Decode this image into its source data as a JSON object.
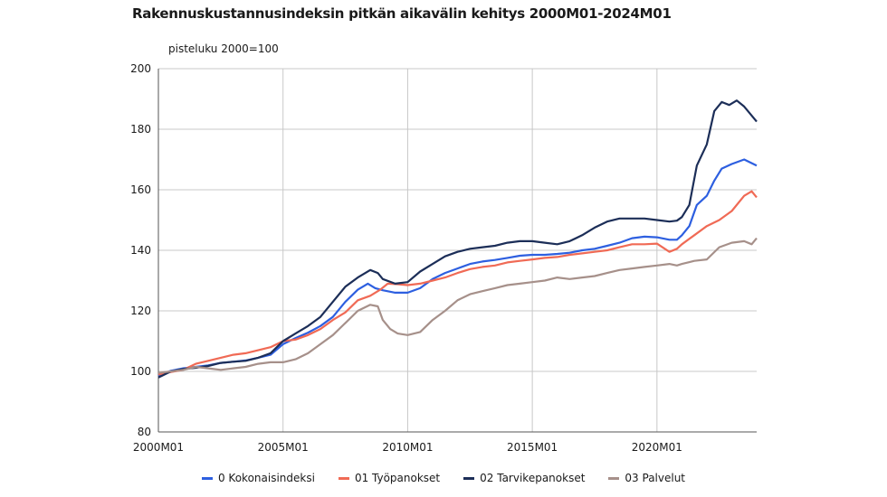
{
  "chart_data": {
    "type": "line",
    "title": "Rakennuskustannusindeksin pitkän aikavälin kehitys 2000M01-2024M01",
    "ylabel": "pisteluku 2000=100",
    "xlabel": "",
    "xlim": [
      2000.0,
      2024.0
    ],
    "ylim": [
      80,
      200
    ],
    "yticks": [
      80,
      100,
      120,
      140,
      160,
      180,
      200
    ],
    "xticks": [
      2000,
      2005,
      2010,
      2015,
      2020
    ],
    "xtick_labels": [
      "2000M01",
      "2005M01",
      "2010M01",
      "2015M01",
      "2020M01"
    ],
    "grid": true,
    "legend_position": "bottom",
    "series": [
      {
        "name": "0 Kokonaisindeksi",
        "color": "#2d5fe0",
        "points": [
          [
            2000.0,
            98.5
          ],
          [
            2000.5,
            100.2
          ],
          [
            2001.0,
            101.0
          ],
          [
            2001.5,
            101.5
          ],
          [
            2002.0,
            102.0
          ],
          [
            2002.5,
            102.8
          ],
          [
            2003.0,
            103.2
          ],
          [
            2003.5,
            103.6
          ],
          [
            2004.0,
            104.5
          ],
          [
            2004.5,
            105.5
          ],
          [
            2005.0,
            109.0
          ],
          [
            2005.5,
            111.0
          ],
          [
            2006.0,
            112.8
          ],
          [
            2006.5,
            115.0
          ],
          [
            2007.0,
            118.0
          ],
          [
            2007.5,
            123.0
          ],
          [
            2008.0,
            127.0
          ],
          [
            2008.4,
            129.0
          ],
          [
            2008.7,
            127.5
          ],
          [
            2009.0,
            126.8
          ],
          [
            2009.5,
            126.0
          ],
          [
            2010.0,
            126.0
          ],
          [
            2010.5,
            127.5
          ],
          [
            2011.0,
            130.5
          ],
          [
            2011.5,
            132.5
          ],
          [
            2012.0,
            134.0
          ],
          [
            2012.5,
            135.5
          ],
          [
            2013.0,
            136.3
          ],
          [
            2013.5,
            136.8
          ],
          [
            2014.0,
            137.5
          ],
          [
            2014.5,
            138.2
          ],
          [
            2015.0,
            138.5
          ],
          [
            2015.5,
            138.5
          ],
          [
            2016.0,
            138.8
          ],
          [
            2016.5,
            139.2
          ],
          [
            2017.0,
            140.0
          ],
          [
            2017.5,
            140.5
          ],
          [
            2018.0,
            141.5
          ],
          [
            2018.5,
            142.5
          ],
          [
            2019.0,
            144.0
          ],
          [
            2019.5,
            144.5
          ],
          [
            2020.0,
            144.3
          ],
          [
            2020.5,
            143.5
          ],
          [
            2020.8,
            143.5
          ],
          [
            2021.0,
            145.0
          ],
          [
            2021.3,
            148.0
          ],
          [
            2021.6,
            155.0
          ],
          [
            2022.0,
            158.0
          ],
          [
            2022.3,
            163.0
          ],
          [
            2022.6,
            167.0
          ],
          [
            2023.0,
            168.5
          ],
          [
            2023.5,
            170.0
          ],
          [
            2024.0,
            168.0
          ]
        ]
      },
      {
        "name": "01 Työpanokset",
        "color": "#f06a55",
        "points": [
          [
            2000.0,
            99.0
          ],
          [
            2000.5,
            99.8
          ],
          [
            2001.0,
            100.5
          ],
          [
            2001.5,
            102.5
          ],
          [
            2002.0,
            103.5
          ],
          [
            2002.5,
            104.5
          ],
          [
            2003.0,
            105.5
          ],
          [
            2003.5,
            106.0
          ],
          [
            2004.0,
            107.0
          ],
          [
            2004.5,
            108.0
          ],
          [
            2005.0,
            110.0
          ],
          [
            2005.5,
            110.5
          ],
          [
            2006.0,
            112.0
          ],
          [
            2006.5,
            114.0
          ],
          [
            2007.0,
            117.0
          ],
          [
            2007.5,
            119.5
          ],
          [
            2008.0,
            123.5
          ],
          [
            2008.5,
            125.0
          ],
          [
            2008.9,
            127.0
          ],
          [
            2009.2,
            129.0
          ],
          [
            2009.6,
            128.8
          ],
          [
            2010.0,
            128.5
          ],
          [
            2010.5,
            129.0
          ],
          [
            2011.0,
            130.0
          ],
          [
            2011.5,
            131.0
          ],
          [
            2012.0,
            132.5
          ],
          [
            2012.5,
            133.8
          ],
          [
            2013.0,
            134.5
          ],
          [
            2013.5,
            135.0
          ],
          [
            2014.0,
            136.0
          ],
          [
            2014.5,
            136.5
          ],
          [
            2015.0,
            137.0
          ],
          [
            2015.5,
            137.5
          ],
          [
            2016.0,
            137.8
          ],
          [
            2016.5,
            138.5
          ],
          [
            2017.0,
            139.0
          ],
          [
            2017.5,
            139.5
          ],
          [
            2018.0,
            140.0
          ],
          [
            2018.5,
            141.0
          ],
          [
            2019.0,
            142.0
          ],
          [
            2019.5,
            142.0
          ],
          [
            2020.0,
            142.2
          ],
          [
            2020.5,
            139.5
          ],
          [
            2020.8,
            140.5
          ],
          [
            2021.0,
            142.0
          ],
          [
            2021.5,
            145.0
          ],
          [
            2022.0,
            148.0
          ],
          [
            2022.5,
            150.0
          ],
          [
            2023.0,
            153.0
          ],
          [
            2023.5,
            158.0
          ],
          [
            2023.8,
            159.5
          ],
          [
            2024.0,
            157.5
          ]
        ]
      },
      {
        "name": "02 Tarvikepanokset",
        "color": "#1c2e58",
        "points": [
          [
            2000.0,
            98.0
          ],
          [
            2000.5,
            100.0
          ],
          [
            2001.0,
            100.8
          ],
          [
            2001.5,
            101.2
          ],
          [
            2002.0,
            101.8
          ],
          [
            2002.5,
            102.8
          ],
          [
            2003.0,
            103.2
          ],
          [
            2003.5,
            103.5
          ],
          [
            2004.0,
            104.5
          ],
          [
            2004.5,
            106.0
          ],
          [
            2005.0,
            110.0
          ],
          [
            2005.5,
            112.5
          ],
          [
            2006.0,
            115.0
          ],
          [
            2006.5,
            118.0
          ],
          [
            2007.0,
            123.0
          ],
          [
            2007.5,
            128.0
          ],
          [
            2008.0,
            131.0
          ],
          [
            2008.5,
            133.5
          ],
          [
            2008.8,
            132.5
          ],
          [
            2009.0,
            130.5
          ],
          [
            2009.5,
            129.0
          ],
          [
            2010.0,
            129.5
          ],
          [
            2010.5,
            133.0
          ],
          [
            2011.0,
            135.5
          ],
          [
            2011.5,
            138.0
          ],
          [
            2012.0,
            139.5
          ],
          [
            2012.5,
            140.5
          ],
          [
            2013.0,
            141.0
          ],
          [
            2013.5,
            141.5
          ],
          [
            2014.0,
            142.5
          ],
          [
            2014.5,
            143.0
          ],
          [
            2015.0,
            143.0
          ],
          [
            2015.5,
            142.5
          ],
          [
            2016.0,
            142.0
          ],
          [
            2016.5,
            143.0
          ],
          [
            2017.0,
            145.0
          ],
          [
            2017.5,
            147.5
          ],
          [
            2018.0,
            149.5
          ],
          [
            2018.5,
            150.5
          ],
          [
            2019.0,
            150.5
          ],
          [
            2019.5,
            150.5
          ],
          [
            2020.0,
            150.0
          ],
          [
            2020.5,
            149.5
          ],
          [
            2020.8,
            149.8
          ],
          [
            2021.0,
            151.0
          ],
          [
            2021.3,
            155.0
          ],
          [
            2021.6,
            168.0
          ],
          [
            2022.0,
            175.0
          ],
          [
            2022.3,
            186.0
          ],
          [
            2022.6,
            189.0
          ],
          [
            2022.9,
            188.0
          ],
          [
            2023.2,
            189.5
          ],
          [
            2023.5,
            187.5
          ],
          [
            2023.8,
            184.5
          ],
          [
            2024.0,
            182.5
          ]
        ]
      },
      {
        "name": "03 Palvelut",
        "color": "#a6908a",
        "points": [
          [
            2000.0,
            99.5
          ],
          [
            2000.5,
            100.0
          ],
          [
            2001.0,
            100.5
          ],
          [
            2001.5,
            101.5
          ],
          [
            2002.0,
            101.0
          ],
          [
            2002.5,
            100.5
          ],
          [
            2003.0,
            101.0
          ],
          [
            2003.5,
            101.5
          ],
          [
            2004.0,
            102.5
          ],
          [
            2004.5,
            103.0
          ],
          [
            2005.0,
            103.0
          ],
          [
            2005.5,
            104.0
          ],
          [
            2006.0,
            106.0
          ],
          [
            2006.5,
            109.0
          ],
          [
            2007.0,
            112.0
          ],
          [
            2007.5,
            116.0
          ],
          [
            2008.0,
            120.0
          ],
          [
            2008.5,
            122.0
          ],
          [
            2008.8,
            121.5
          ],
          [
            2009.0,
            117.0
          ],
          [
            2009.3,
            114.0
          ],
          [
            2009.6,
            112.5
          ],
          [
            2010.0,
            112.0
          ],
          [
            2010.5,
            113.0
          ],
          [
            2011.0,
            117.0
          ],
          [
            2011.5,
            120.0
          ],
          [
            2012.0,
            123.5
          ],
          [
            2012.5,
            125.5
          ],
          [
            2013.0,
            126.5
          ],
          [
            2013.5,
            127.5
          ],
          [
            2014.0,
            128.5
          ],
          [
            2014.5,
            129.0
          ],
          [
            2015.0,
            129.5
          ],
          [
            2015.5,
            130.0
          ],
          [
            2016.0,
            131.0
          ],
          [
            2016.5,
            130.5
          ],
          [
            2017.0,
            131.0
          ],
          [
            2017.5,
            131.5
          ],
          [
            2018.0,
            132.5
          ],
          [
            2018.5,
            133.5
          ],
          [
            2019.0,
            134.0
          ],
          [
            2019.5,
            134.5
          ],
          [
            2020.0,
            135.0
          ],
          [
            2020.5,
            135.5
          ],
          [
            2020.8,
            135.0
          ],
          [
            2021.0,
            135.5
          ],
          [
            2021.5,
            136.5
          ],
          [
            2022.0,
            137.0
          ],
          [
            2022.5,
            141.0
          ],
          [
            2023.0,
            142.5
          ],
          [
            2023.5,
            143.0
          ],
          [
            2023.8,
            142.0
          ],
          [
            2024.0,
            144.0
          ]
        ]
      }
    ]
  }
}
